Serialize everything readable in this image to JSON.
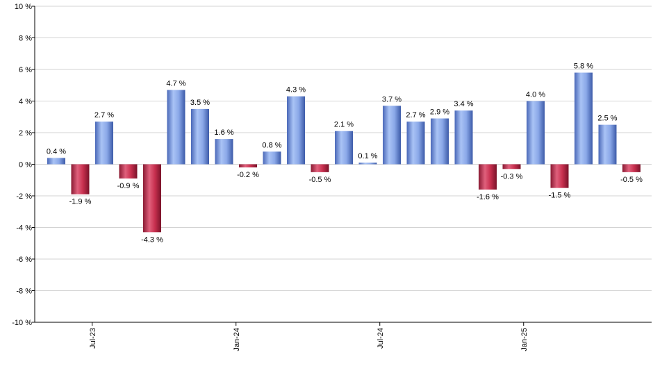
{
  "chart_data": {
    "type": "bar",
    "title": "",
    "xlabel": "",
    "ylabel": "",
    "ylim": [
      -10,
      10
    ],
    "y_ticks": [
      -10,
      -8,
      -6,
      -4,
      -2,
      0,
      2,
      4,
      6,
      8,
      10
    ],
    "y_tick_suffix": " %",
    "grid": true,
    "colors": {
      "positive": "#7f9fe0",
      "negative": "#c8304f"
    },
    "categories": [
      "2023-06",
      "2023-07",
      "2023-08",
      "2023-09",
      "2023-10",
      "2023-11",
      "2023-12",
      "2024-01",
      "2024-02",
      "2024-03",
      "2024-04",
      "2024-05",
      "2024-06",
      "2024-07",
      "2024-08",
      "2024-09",
      "2024-10",
      "2024-11",
      "2024-12",
      "2025-01",
      "2025-02",
      "2025-03",
      "2025-04",
      "2025-05",
      "2025-06"
    ],
    "values": [
      0.4,
      -1.9,
      2.7,
      -0.9,
      -4.3,
      4.7,
      3.5,
      1.6,
      -0.2,
      0.8,
      4.3,
      -0.5,
      2.1,
      0.1,
      3.7,
      2.7,
      2.9,
      3.4,
      -1.6,
      -0.3,
      4.0,
      -1.5,
      5.8,
      2.5,
      -0.5
    ],
    "labels": [
      "0.4 %",
      "-1.9 %",
      "2.7 %",
      "-0.9 %",
      "-4.3 %",
      "4.7 %",
      "3.5 %",
      "1.6 %",
      "-0.2 %",
      "0.8 %",
      "4.3 %",
      "-0.5 %",
      "2.1 %",
      "0.1 %",
      "3.7 %",
      "2.7 %",
      "2.9 %",
      "3.4 %",
      "-1.6 %",
      "-0.3 %",
      "4.0 %",
      "-1.5 %",
      "5.8 %",
      "2.5 %",
      "-0.5 %"
    ],
    "x_tick_labels": [
      {
        "category_index": 2,
        "label": "Jul-23"
      },
      {
        "category_index": 8,
        "label": "Jan-24"
      },
      {
        "category_index": 14,
        "label": "Jul-24"
      },
      {
        "category_index": 20,
        "label": "Jan-25"
      }
    ]
  }
}
